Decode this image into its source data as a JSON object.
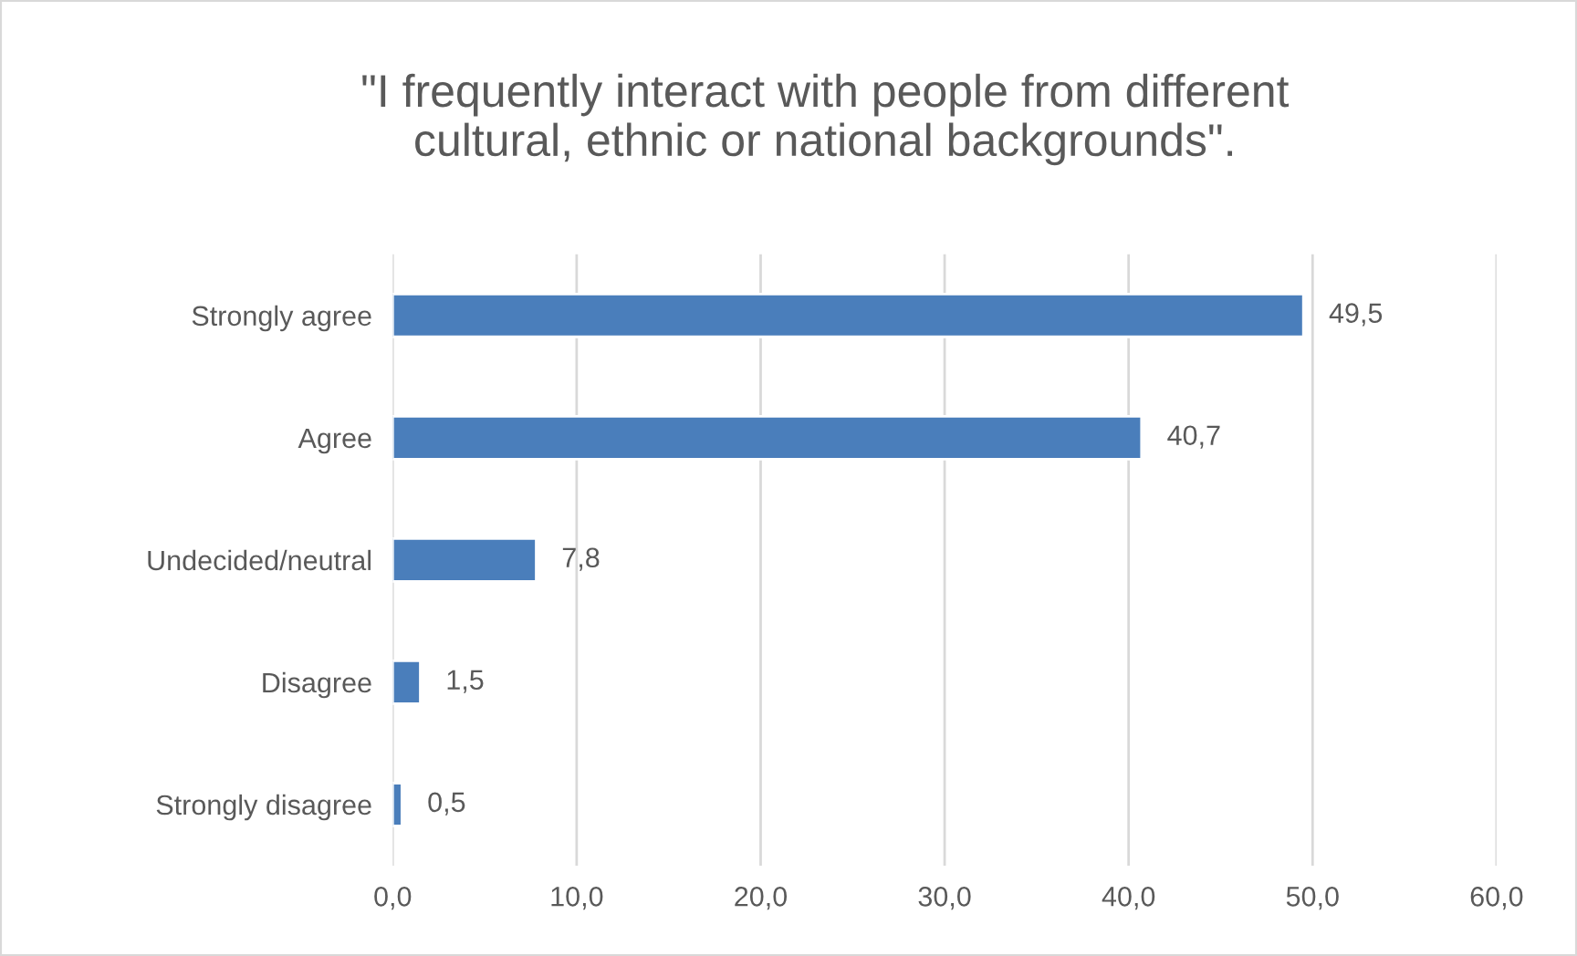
{
  "chart_data": {
    "type": "bar",
    "orientation": "horizontal",
    "title": "\"I frequently interact with people from different\ncultural, ethnic or national backgrounds\".",
    "categories": [
      "Strongly agree",
      "Agree",
      "Undecided/neutral",
      "Disagree",
      "Strongly disagree"
    ],
    "values": [
      49.5,
      40.7,
      7.8,
      1.5,
      0.5
    ],
    "value_labels": [
      "49,5",
      "40,7",
      "7,8",
      "1,5",
      "0,5"
    ],
    "color": "#4a7ebb",
    "xlim": [
      0,
      60
    ],
    "xticks": [
      {
        "value": 0,
        "label": "0,0"
      },
      {
        "value": 10,
        "label": "10,0"
      },
      {
        "value": 20,
        "label": "20,0"
      },
      {
        "value": 30,
        "label": "30,0"
      },
      {
        "value": 40,
        "label": "40,0"
      },
      {
        "value": 50,
        "label": "50,0"
      },
      {
        "value": 60,
        "label": "60,0"
      }
    ],
    "grid": "x",
    "legend": false
  }
}
